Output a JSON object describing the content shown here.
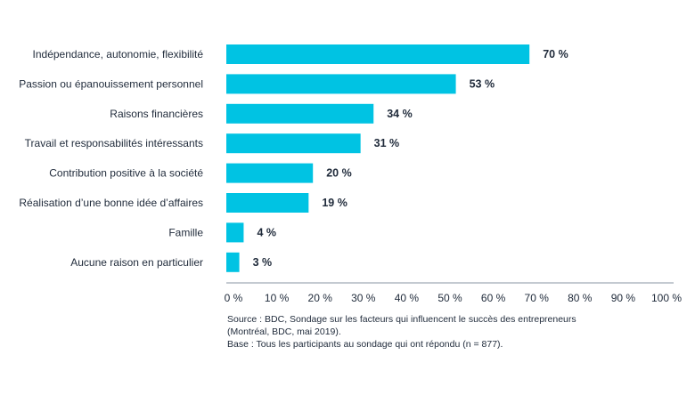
{
  "chart_data": {
    "type": "bar",
    "orientation": "horizontal",
    "categories": [
      "Indépendance, autonomie, flexibilité",
      "Passion ou épanouissement personnel",
      "Raisons financières",
      "Travail et responsabilités intéressants",
      "Contribution positive à la société",
      "Réalisation d’une bonne idée d’affaires",
      "Famille",
      "Aucune raison en particulier"
    ],
    "values": [
      70,
      53,
      34,
      31,
      20,
      19,
      4,
      3
    ],
    "value_labels": [
      "70 %",
      "53 %",
      "34 %",
      "31 %",
      "20 %",
      "19 %",
      "4 %",
      "3 %"
    ],
    "title": "",
    "xlabel": "",
    "ylabel": "",
    "xlim": [
      0,
      100
    ],
    "ticks": [
      0,
      10,
      20,
      30,
      40,
      50,
      60,
      70,
      80,
      90,
      100
    ],
    "tick_labels": [
      "0 %",
      "10 %",
      "20 %",
      "30 %",
      "40 %",
      "50 %",
      "60 %",
      "70 %",
      "80 %",
      "90 %",
      "100 %"
    ],
    "bar_color": "#00c3e3",
    "grid": false,
    "legend": "none"
  },
  "source": {
    "line1": "Source : BDC, Sondage sur les facteurs qui influencent le succès des entrepreneurs",
    "line2": "(Montréal, BDC, mai 2019).",
    "line3": "Base : Tous les participants au sondage qui ont répondu (n = 877)."
  }
}
